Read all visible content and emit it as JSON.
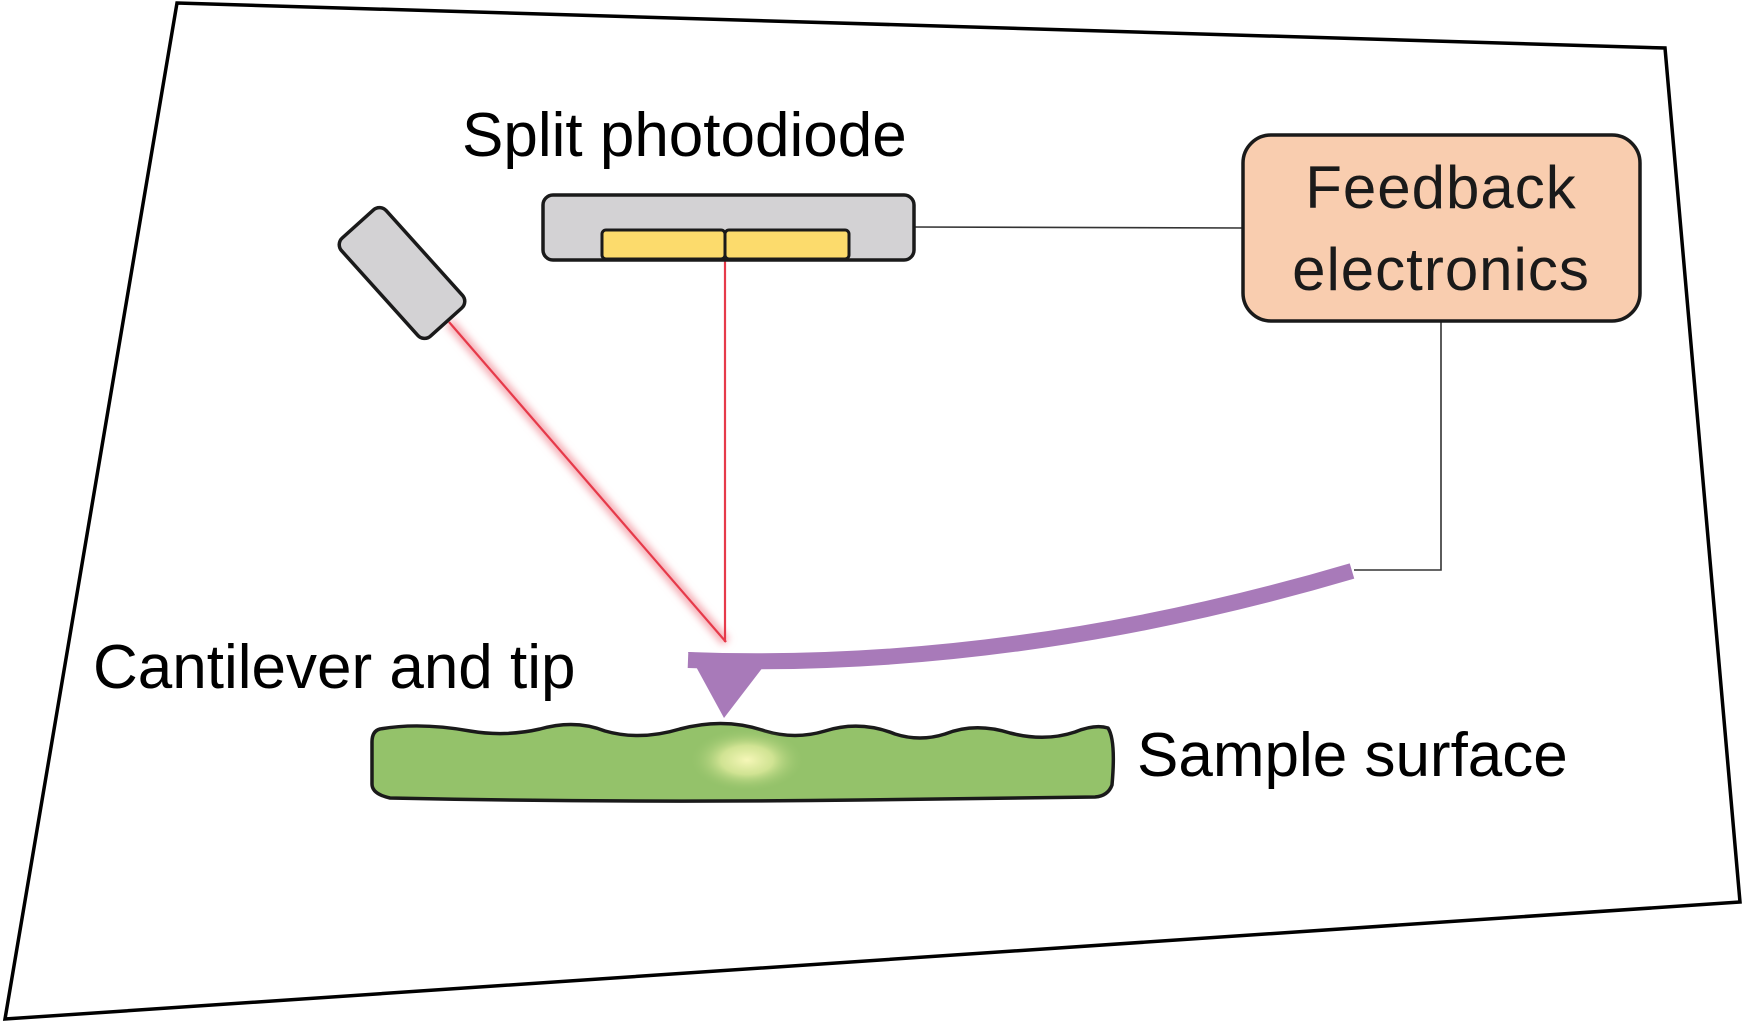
{
  "labels": {
    "photodiode": "Split photodiode",
    "feedback_line1": "Feedback",
    "feedback_line2": "electronics",
    "cantilever": "Cantilever and tip",
    "sample": "Sample surface"
  },
  "colors": {
    "frame_stroke": "#000000",
    "photodiode_body": "#d3d2d4",
    "photodiode_sensor": "#fcdb6c",
    "feedback_fill": "#f9cdaf",
    "laser_beam": "#e63a4a",
    "laser_glow": "#f4a6ae",
    "cantilever": "#a87ab9",
    "sample_fill": "#94c26a",
    "sample_glow": "#f0f4a0",
    "laser_source": "#d3d2d4",
    "wire": "#333333"
  },
  "icons": {
    "laser_source": "laser-source-icon",
    "photodiode": "photodiode-icon",
    "cantilever": "cantilever-tip-icon",
    "sample": "sample-surface-icon"
  }
}
